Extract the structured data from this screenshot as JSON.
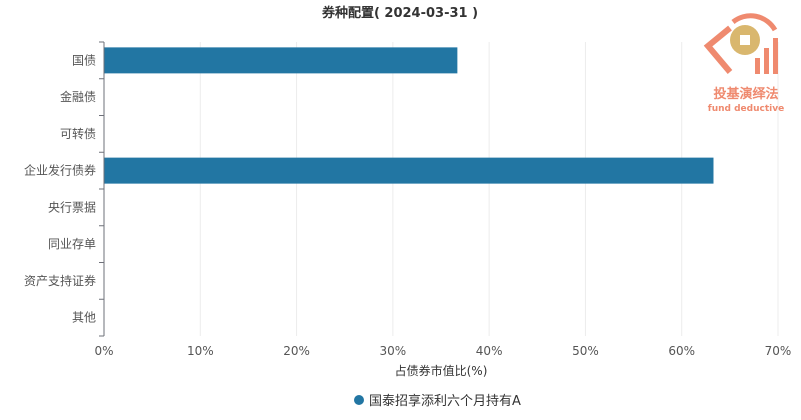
{
  "chart_data": {
    "type": "bar",
    "orientation": "horizontal",
    "title": "券种配置( 2024-03-31 )",
    "xlabel": "占债券市值比(%)",
    "ylabel": "",
    "categories": [
      "国债",
      "金融债",
      "可转债",
      "企业发行债券",
      "央行票据",
      "同业存单",
      "资产支持证券",
      "其他"
    ],
    "series": [
      {
        "name": "国泰招享添利六个月持有A",
        "values": [
          36.7,
          0,
          0,
          63.3,
          0,
          0,
          0,
          0
        ],
        "color": "#2276a3"
      }
    ],
    "xlim": [
      0,
      70
    ],
    "xticks": [
      0,
      10,
      20,
      30,
      40,
      50,
      60,
      70
    ],
    "xtick_labels": [
      "0%",
      "10%",
      "20%",
      "30%",
      "40%",
      "50%",
      "60%",
      "70%"
    ],
    "grid": true,
    "legend_position": "bottom-center"
  },
  "watermark": {
    "text_cn": "投基演绎法",
    "text_en": "fund deductive",
    "color": "#ef8a6f",
    "accent_color": "#d9b76e"
  }
}
